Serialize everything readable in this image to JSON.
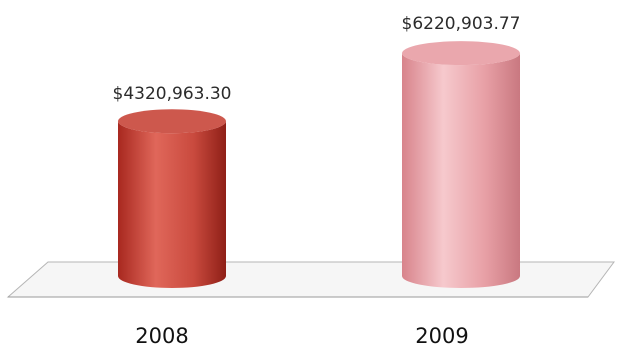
{
  "chart_data": {
    "type": "bar",
    "bar_shape": "3d-cylinder",
    "categories": [
      "2008",
      "2009"
    ],
    "values": [
      4320963.3,
      6220903.77
    ],
    "data_labels": [
      "$4320,963.30",
      "$6220,903.77"
    ],
    "title": "",
    "xlabel": "",
    "ylabel": "",
    "ylim": [
      0,
      6700000
    ],
    "grid": false,
    "legend": "none",
    "colors": [
      "#c94a3e",
      "#e8a0a6"
    ]
  }
}
